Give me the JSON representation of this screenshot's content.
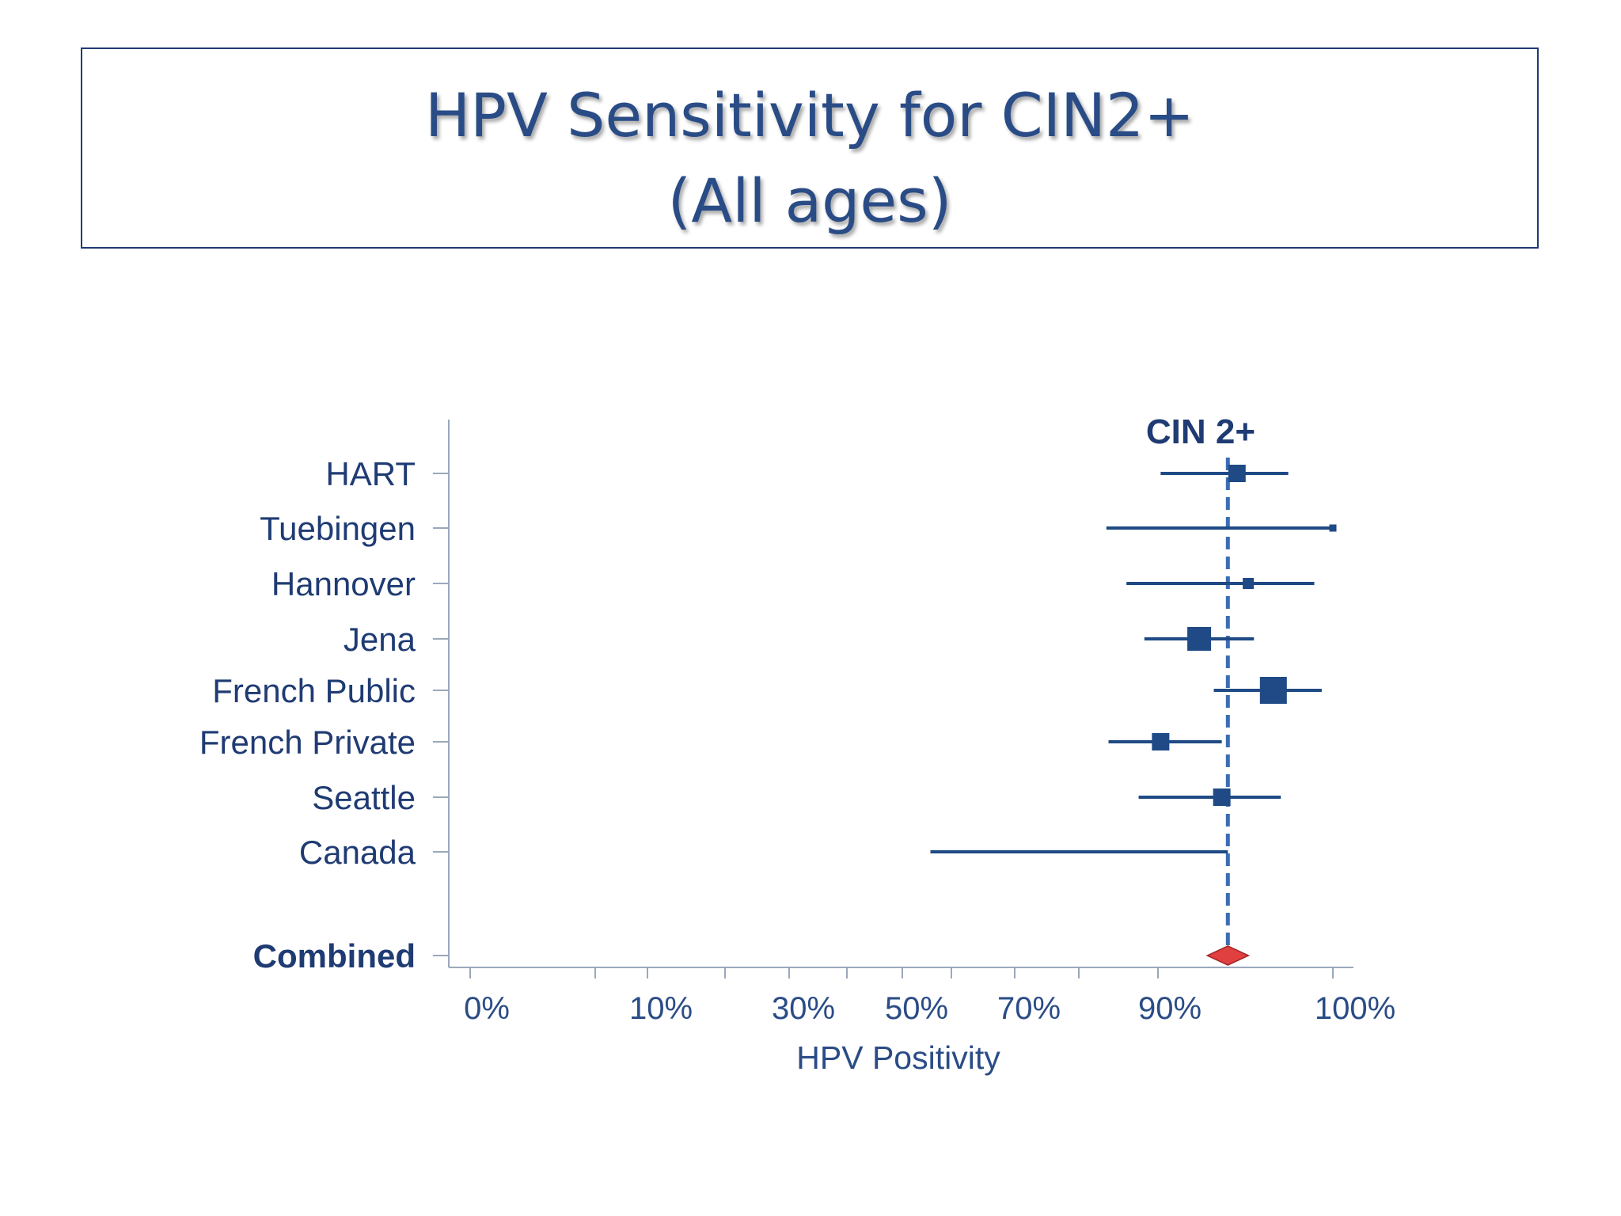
{
  "slide": {
    "title_line1": "HPV Sensitivity for CIN2+",
    "title_line2": "(All ages)"
  },
  "chart_data": {
    "type": "forest",
    "series_label": "CIN 2+",
    "xlabel": "HPV Positivity",
    "x_ticks": [
      "0%",
      "10%",
      "30%",
      "50%",
      "70%",
      "90%",
      "100%"
    ],
    "combined_estimate": 95.3,
    "studies": [
      {
        "name": "HART",
        "estimate": 96.1,
        "ci_low": 90.2,
        "ci_high": 98.8,
        "weight": "medium"
      },
      {
        "name": "Tuebingen",
        "estimate": 100,
        "ci_low": 82.8,
        "ci_high": 100,
        "weight": "tiny"
      },
      {
        "name": "Hannover",
        "estimate": 97.1,
        "ci_low": 85.6,
        "ci_high": 99.5,
        "weight": "small"
      },
      {
        "name": "Jena",
        "estimate": 93.1,
        "ci_low": 88.1,
        "ci_high": 97.6,
        "weight": "large"
      },
      {
        "name": "French Public",
        "estimate": 98.4,
        "ci_low": 94.2,
        "ci_high": 99.7,
        "weight": "largest"
      },
      {
        "name": "French Private",
        "estimate": 90.2,
        "ci_low": 83.1,
        "ci_high": 94.8,
        "weight": "medium"
      },
      {
        "name": "Seattle",
        "estimate": 94.8,
        "ci_low": 87.3,
        "ci_high": 98.6,
        "weight": "medium"
      },
      {
        "name": "Canada",
        "estimate": 95.3,
        "ci_low": 55.0,
        "ci_high": 95.3,
        "weight": "none"
      }
    ],
    "combined_label": "Combined",
    "colors": {
      "study": "#1f4a85",
      "reference_line": "#3a6db5",
      "combined_marker": "#e04040",
      "axis": "#9aa8bb"
    }
  }
}
